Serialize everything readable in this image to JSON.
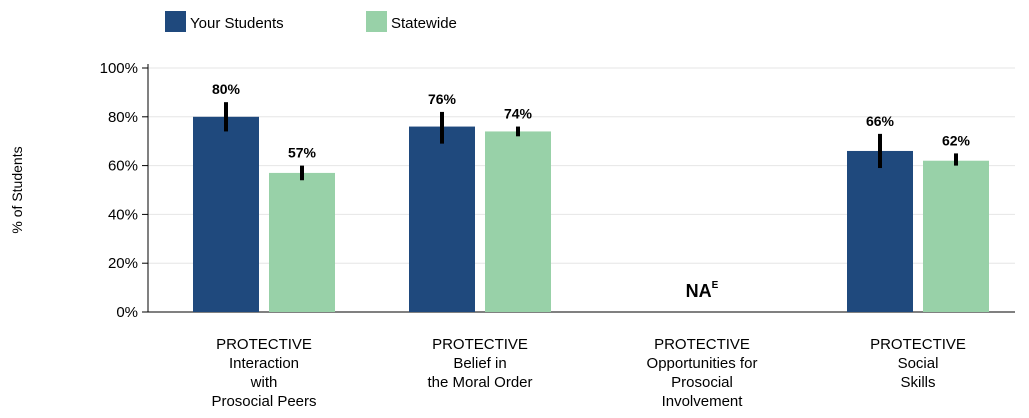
{
  "chart_data": {
    "type": "bar",
    "ylabel": "% of Students",
    "ylim": [
      0,
      100
    ],
    "yticks": [
      {
        "value": 0,
        "label": "0%"
      },
      {
        "value": 20,
        "label": "20%"
      },
      {
        "value": 40,
        "label": "40%"
      },
      {
        "value": 60,
        "label": "60%"
      },
      {
        "value": 80,
        "label": "80%"
      },
      {
        "value": 100,
        "label": "100%"
      }
    ],
    "grid": true,
    "legend_position": "top-left",
    "categories": [
      {
        "lines": [
          "PROTECTIVE",
          "Interaction",
          "with",
          "Prosocial Peers"
        ]
      },
      {
        "lines": [
          "PROTECTIVE",
          "Belief in",
          "the Moral Order"
        ]
      },
      {
        "lines": [
          "PROTECTIVE",
          "Opportunities for",
          "Prosocial",
          "Involvement"
        ],
        "na_text": "NA",
        "na_superscript": "E"
      },
      {
        "lines": [
          "PROTECTIVE",
          "Social",
          "Skills"
        ]
      }
    ],
    "series": [
      {
        "name": "Your Students",
        "color": "#1f497d",
        "values": [
          80,
          76,
          null,
          66
        ],
        "labels": [
          "80%",
          "76%",
          "",
          "66%"
        ],
        "error_low": [
          74,
          69,
          null,
          59
        ],
        "error_high": [
          86,
          82,
          null,
          73
        ]
      },
      {
        "name": "Statewide",
        "color": "#98d1a8",
        "values": [
          57,
          74,
          null,
          62
        ],
        "labels": [
          "57%",
          "74%",
          "",
          "62%"
        ],
        "error_low": [
          54,
          72,
          null,
          60
        ],
        "error_high": [
          60,
          76,
          null,
          65
        ]
      }
    ]
  }
}
